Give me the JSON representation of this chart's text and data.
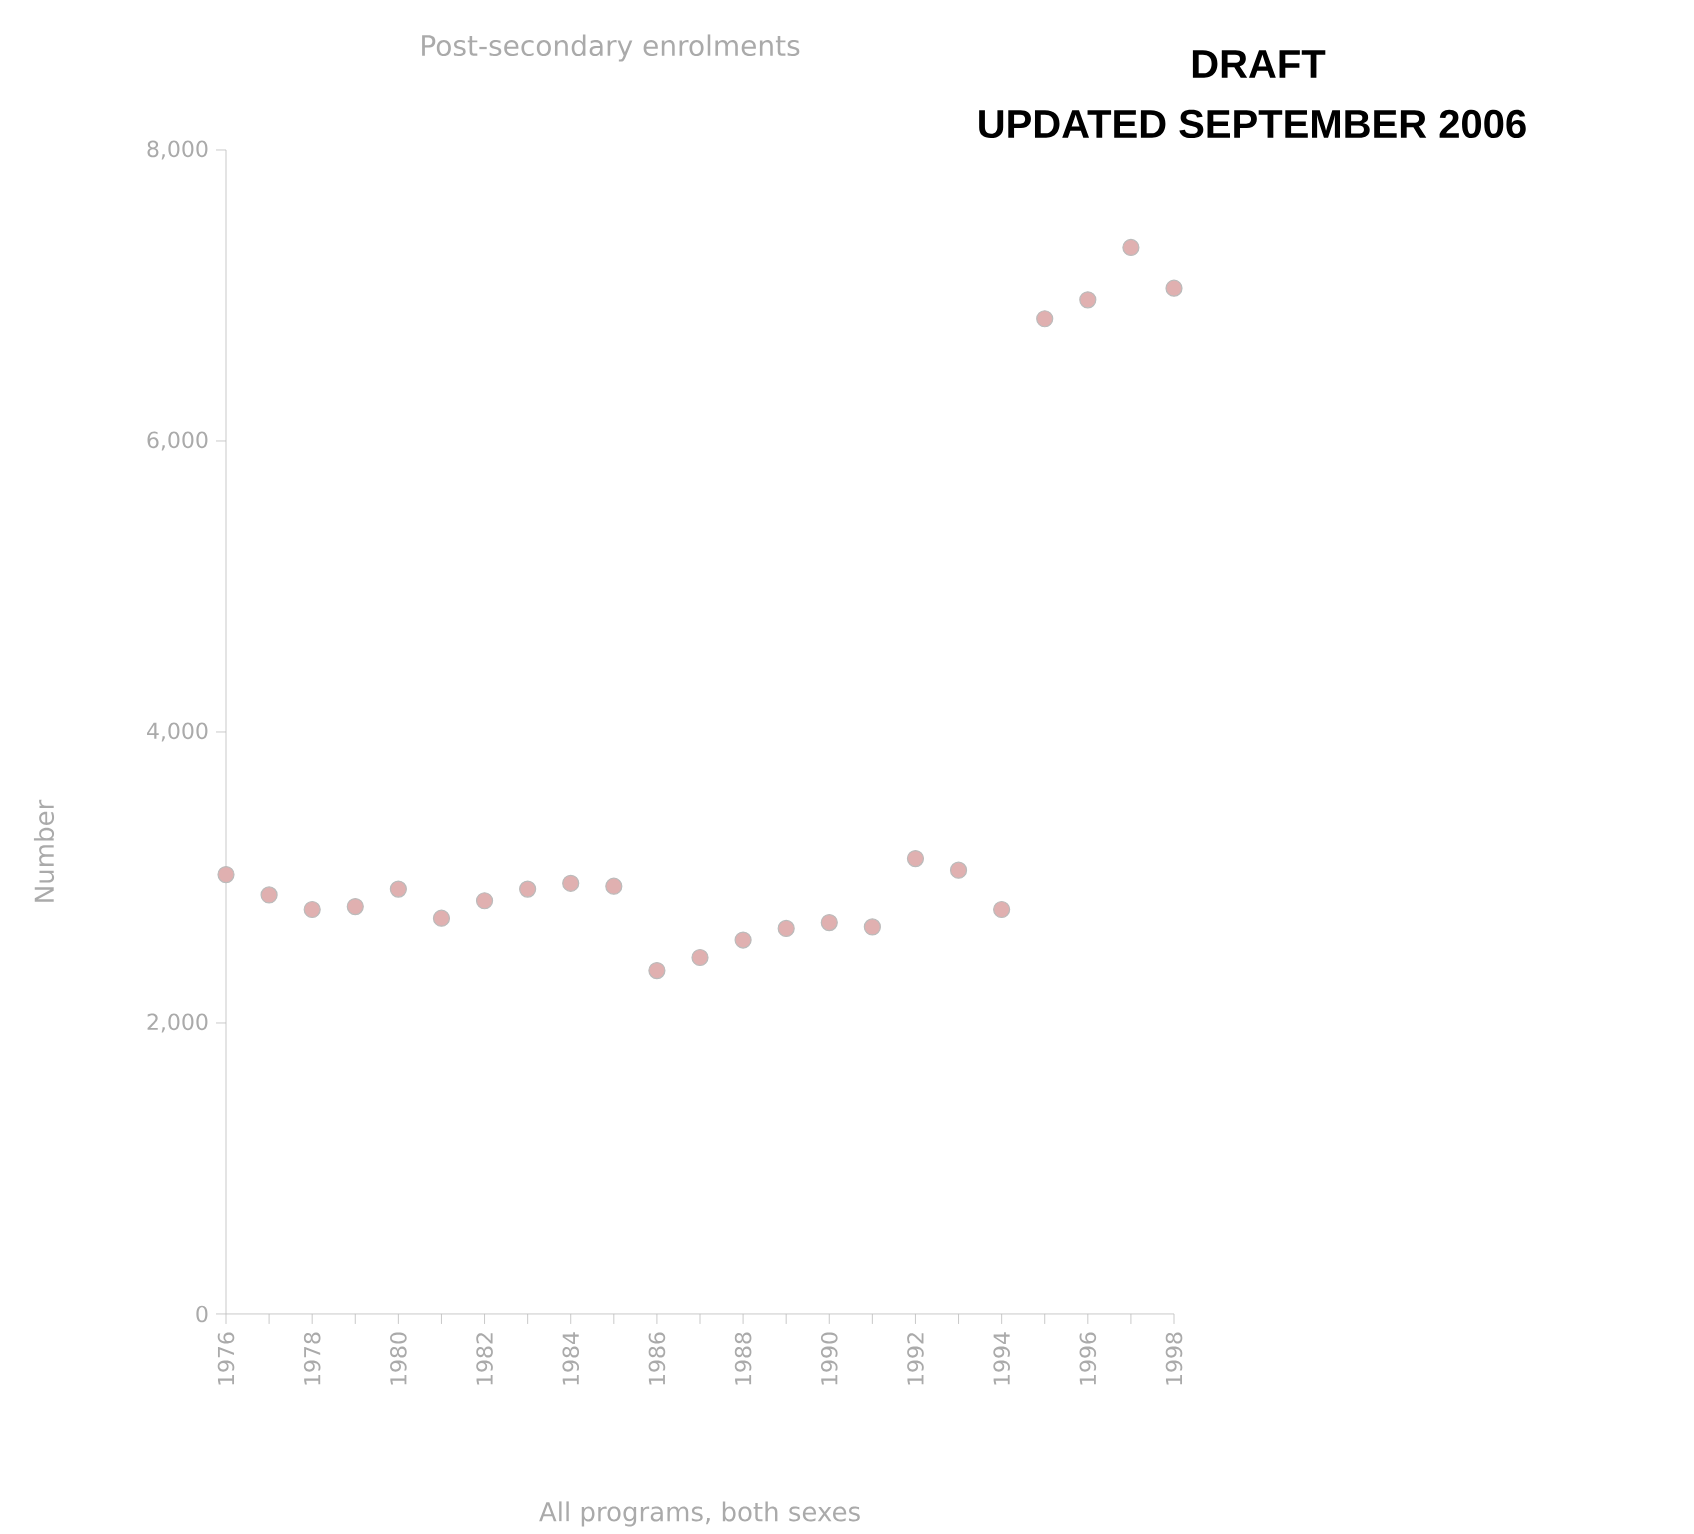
{
  "chart_data": {
    "type": "scatter",
    "title": "Post-secondary enrolments",
    "xlabel": "All programs, both sexes",
    "ylabel": "Number",
    "annotations": [
      "DRAFT",
      "UPDATED SEPTEMBER 2006"
    ],
    "x": [
      1976,
      1977,
      1978,
      1979,
      1980,
      1981,
      1982,
      1983,
      1984,
      1985,
      1986,
      1987,
      1988,
      1989,
      1990,
      1991,
      1992,
      1993,
      1994,
      1995,
      1996,
      1997,
      1998
    ],
    "values": [
      3020,
      2880,
      2780,
      2800,
      2920,
      2720,
      2840,
      2920,
      2960,
      2940,
      2360,
      2450,
      2570,
      2650,
      2690,
      2660,
      3130,
      3050,
      2780,
      6840,
      6970,
      7330,
      7050
    ],
    "color": "#e0b0b0",
    "marker": "circle",
    "xlim": [
      1976,
      1998
    ],
    "xticks": [
      1976,
      {
        "value": 1977,
        "label": null
      },
      1978,
      {
        "value": 1979,
        "label": null
      },
      1980,
      {
        "value": 1981,
        "label": null
      },
      1982,
      {
        "value": 1983,
        "label": null
      },
      1984,
      {
        "value": 1985,
        "label": null
      },
      1986,
      {
        "value": 1987,
        "label": null
      },
      1988,
      {
        "value": 1989,
        "label": null
      },
      1990,
      {
        "value": 1991,
        "label": null
      },
      1992,
      {
        "value": 1993,
        "label": null
      },
      1994,
      {
        "value": 1995,
        "label": null
      },
      1996,
      {
        "value": 1997,
        "label": null
      },
      1998
    ],
    "ylim": [
      0,
      8000
    ],
    "yticks": [
      0,
      {
        "value": 2000,
        "label": "2,000"
      },
      {
        "value": 4000,
        "label": "4,000"
      },
      {
        "value": 6000,
        "label": "6,000"
      },
      {
        "value": 8000,
        "label": "8,000"
      }
    ],
    "grid": false
  }
}
